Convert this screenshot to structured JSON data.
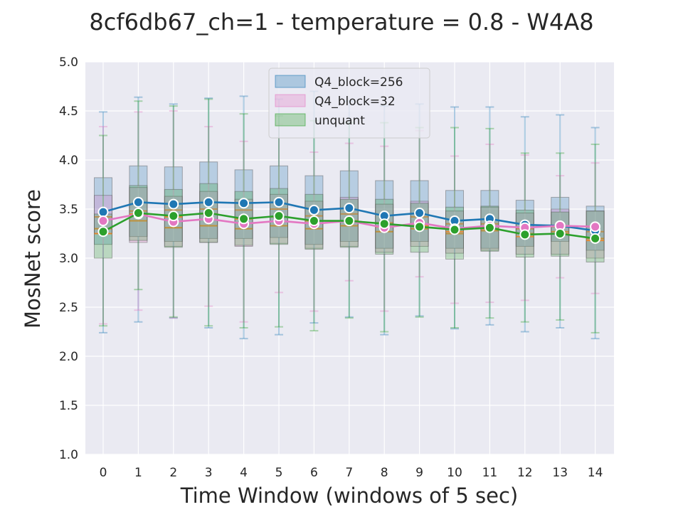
{
  "chart_data": {
    "type": "box+line",
    "title": "8cf6db67_ch=1 - temperature = 0.8 - W4A8",
    "xlabel": "Time Window (windows of 5 sec)",
    "ylabel": "MosNet score",
    "ylim": [
      1.0,
      5.0
    ],
    "yticks": [
      "1.0",
      "1.5",
      "2.0",
      "2.5",
      "3.0",
      "3.5",
      "4.0",
      "4.5",
      "5.0"
    ],
    "categories": [
      "0",
      "1",
      "2",
      "3",
      "4",
      "5",
      "6",
      "7",
      "8",
      "9",
      "10",
      "11",
      "12",
      "13",
      "14"
    ],
    "grid": true,
    "legend_position": "top-center",
    "background_color": "#eaeaf2",
    "median_color": "#ff7f0e",
    "series": [
      {
        "name": "Q4_block=256",
        "color": "#1f77b4",
        "mean": [
          3.47,
          3.57,
          3.55,
          3.57,
          3.56,
          3.57,
          3.49,
          3.51,
          3.43,
          3.46,
          3.38,
          3.4,
          3.34,
          3.33,
          3.28
        ],
        "q1": [
          3.14,
          3.22,
          3.17,
          3.2,
          3.2,
          3.21,
          3.14,
          3.17,
          3.1,
          3.17,
          3.1,
          3.1,
          3.12,
          3.17,
          3.08
        ],
        "median": [
          3.42,
          3.48,
          3.49,
          3.5,
          3.49,
          3.5,
          3.43,
          3.45,
          3.36,
          3.42,
          3.35,
          3.35,
          3.3,
          3.32,
          3.27
        ],
        "q3": [
          3.82,
          3.94,
          3.93,
          3.98,
          3.9,
          3.94,
          3.84,
          3.89,
          3.79,
          3.79,
          3.69,
          3.69,
          3.59,
          3.62,
          3.53
        ],
        "whisker_low": [
          2.24,
          2.35,
          2.39,
          2.29,
          2.18,
          2.22,
          2.34,
          2.4,
          2.22,
          2.41,
          2.28,
          2.32,
          2.25,
          2.29,
          2.18
        ],
        "whisker_high": [
          4.49,
          4.64,
          4.57,
          4.63,
          4.65,
          4.62,
          4.7,
          4.6,
          4.55,
          4.57,
          4.54,
          4.54,
          4.44,
          4.46,
          4.33
        ]
      },
      {
        "name": "Q4_block=32",
        "color": "#e377c2",
        "mean": [
          3.38,
          3.45,
          3.37,
          3.4,
          3.35,
          3.38,
          3.35,
          3.38,
          3.31,
          3.36,
          3.3,
          3.33,
          3.31,
          3.33,
          3.32
        ],
        "q1": [
          3.25,
          3.16,
          3.12,
          3.16,
          3.12,
          3.15,
          3.1,
          3.12,
          3.06,
          3.12,
          3.05,
          3.08,
          3.04,
          3.04,
          3.0
        ],
        "median": [
          3.3,
          3.38,
          3.31,
          3.33,
          3.3,
          3.33,
          3.3,
          3.33,
          3.27,
          3.3,
          3.25,
          3.28,
          3.25,
          3.27,
          3.2
        ],
        "q3": [
          3.64,
          3.72,
          3.63,
          3.68,
          3.6,
          3.65,
          3.58,
          3.62,
          3.55,
          3.58,
          3.48,
          3.52,
          3.46,
          3.5,
          3.48
        ],
        "whisker_low": [
          2.33,
          2.47,
          2.39,
          2.51,
          2.35,
          2.65,
          2.46,
          2.77,
          2.46,
          2.81,
          2.54,
          2.55,
          2.57,
          2.8,
          2.64
        ],
        "whisker_high": [
          4.34,
          4.49,
          4.5,
          4.34,
          4.19,
          4.36,
          4.08,
          4.17,
          4.14,
          4.3,
          4.04,
          4.16,
          4.05,
          3.84,
          3.97
        ]
      },
      {
        "name": "unquant",
        "color": "#2ca02c",
        "mean": [
          3.27,
          3.46,
          3.43,
          3.46,
          3.4,
          3.43,
          3.38,
          3.38,
          3.35,
          3.32,
          3.29,
          3.31,
          3.24,
          3.25,
          3.2
        ],
        "q1": [
          3.0,
          3.18,
          3.11,
          3.16,
          3.13,
          3.14,
          3.09,
          3.11,
          3.04,
          3.06,
          2.99,
          3.07,
          3.01,
          3.02,
          2.96
        ],
        "median": [
          3.25,
          3.45,
          3.42,
          3.45,
          3.4,
          3.42,
          3.38,
          3.38,
          3.32,
          3.33,
          3.27,
          3.3,
          3.22,
          3.25,
          3.18
        ],
        "q3": [
          3.45,
          3.74,
          3.7,
          3.76,
          3.68,
          3.71,
          3.65,
          3.6,
          3.6,
          3.56,
          3.52,
          3.53,
          3.49,
          3.47,
          3.48
        ],
        "whisker_low": [
          2.31,
          2.68,
          2.4,
          2.31,
          2.29,
          2.3,
          2.26,
          2.39,
          2.25,
          2.4,
          2.29,
          2.39,
          2.35,
          2.37,
          2.24
        ],
        "whisker_high": [
          4.25,
          4.6,
          4.55,
          4.62,
          4.47,
          4.45,
          4.4,
          4.38,
          4.38,
          4.33,
          4.33,
          4.32,
          4.07,
          4.07,
          4.16
        ]
      }
    ]
  }
}
